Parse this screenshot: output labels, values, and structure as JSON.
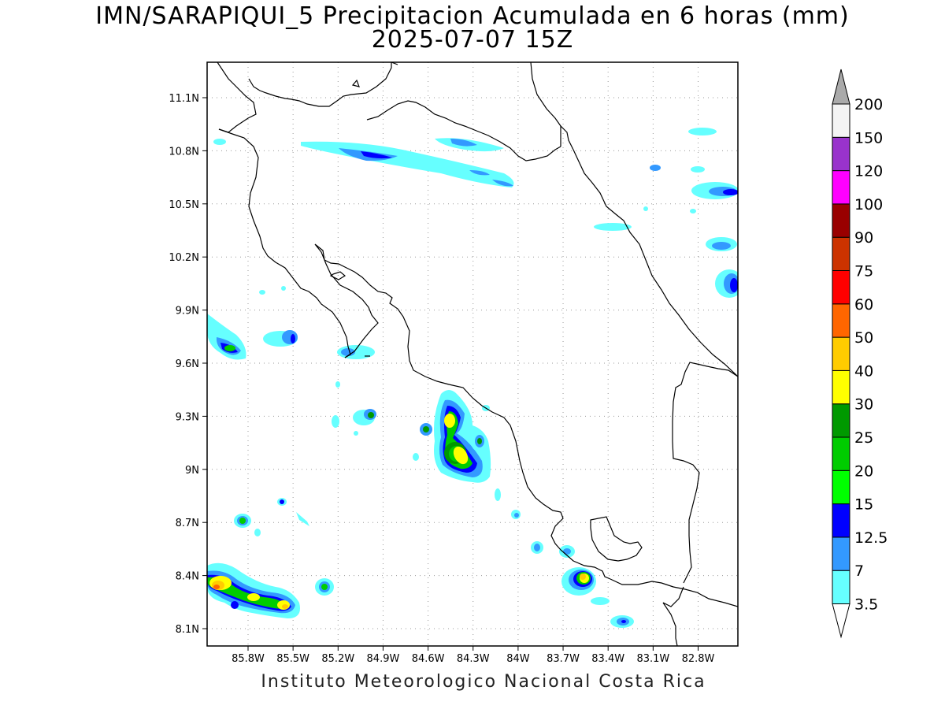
{
  "title": {
    "line1": "IMN/SARAPIQUI_5 Precipitacion Acumulada en 6 horas (mm)",
    "line2": "2025-07-07 15Z"
  },
  "footer": "Instituto Meteorologico Nacional Costa Rica",
  "map": {
    "lon_ticks": [
      "85.8W",
      "85.5W",
      "85.2W",
      "84.9W",
      "84.6W",
      "84.3W",
      "84W",
      "83.7W",
      "83.4W",
      "83.1W",
      "82.8W"
    ],
    "lat_ticks": [
      "11.1N",
      "10.8N",
      "10.5N",
      "10.2N",
      "9.9N",
      "9.6N",
      "9.3N",
      "9N",
      "8.7N",
      "8.4N",
      "8.1N"
    ],
    "lon_range": [
      "86.1W",
      "82.6W"
    ],
    "lat_range": [
      "8.0N",
      "11.3N"
    ],
    "grid": "dotted"
  },
  "colorbar": {
    "levels": [
      "3.5",
      "7",
      "12.5",
      "15",
      "20",
      "25",
      "30",
      "40",
      "50",
      "60",
      "75",
      "90",
      "100",
      "120",
      "150",
      "200"
    ],
    "colors": [
      "#66ffff",
      "#3399ff",
      "#0000ff",
      "#00ff00",
      "#00cc00",
      "#009900",
      "#ffff00",
      "#ffcc00",
      "#ff6600",
      "#ff0000",
      "#cc3300",
      "#990000",
      "#ff00ff",
      "#9933cc",
      "#f4f4f4"
    ],
    "over_arrow_color": "#aaaaaa",
    "under_arrow_color": "#ffffff"
  }
}
